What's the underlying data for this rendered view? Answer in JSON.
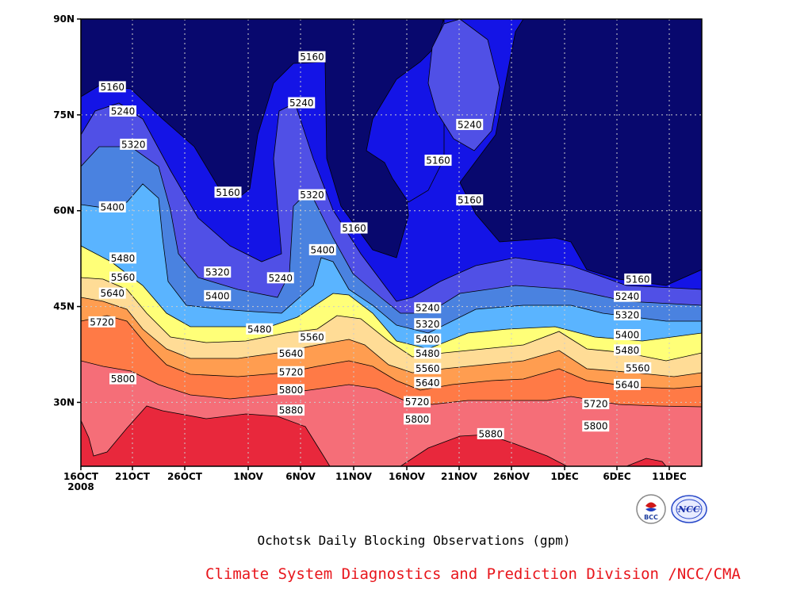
{
  "chart_data": {
    "type": "contour",
    "title": "Ochotsk Daily Blocking Observations (gpm)",
    "x_ticks": [
      "16OCT\n2008",
      "21OCT",
      "26OCT",
      "1NOV",
      "6NOV",
      "11NOV",
      "16NOV",
      "21NOV",
      "26NOV",
      "1DEC",
      "6DEC",
      "11DEC"
    ],
    "y_ticks": [
      "30N",
      "45N",
      "60N",
      "75N",
      "90N"
    ],
    "ylim": [
      20,
      90
    ],
    "units": "gpm",
    "contour_levels": [
      5160,
      5240,
      5320,
      5400,
      5480,
      5560,
      5640,
      5720,
      5800,
      5880
    ],
    "contour_labels": [
      {
        "text": "5160",
        "date": "19OCT",
        "lat": 79.4
      },
      {
        "text": "5240",
        "date": "20OCT",
        "lat": 75.6
      },
      {
        "text": "5320",
        "date": "21OCT",
        "lat": 70.4
      },
      {
        "text": "5400",
        "date": "19OCT",
        "lat": 60.6
      },
      {
        "text": "5480",
        "date": "20OCT",
        "lat": 52.6
      },
      {
        "text": "5560",
        "date": "20OCT",
        "lat": 49.6
      },
      {
        "text": "5640",
        "date": "19OCT",
        "lat": 47.1
      },
      {
        "text": "5720",
        "date": "18OCT",
        "lat": 42.6
      },
      {
        "text": "5800",
        "date": "20OCT",
        "lat": 33.7
      },
      {
        "text": "5160",
        "date": "30OCT",
        "lat": 62.9
      },
      {
        "text": "5320",
        "date": "29OCT",
        "lat": 50.4
      },
      {
        "text": "5400",
        "date": "29OCT",
        "lat": 46.7
      },
      {
        "text": "5480",
        "date": "2NOV",
        "lat": 41.5
      },
      {
        "text": "5640",
        "date": "5NOV",
        "lat": 37.7
      },
      {
        "text": "5720",
        "date": "5NOV",
        "lat": 34.8
      },
      {
        "text": "5800",
        "date": "5NOV",
        "lat": 32.0
      },
      {
        "text": "5880",
        "date": "5NOV",
        "lat": 28.8
      },
      {
        "text": "5240",
        "date": "4NOV",
        "lat": 49.5
      },
      {
        "text": "5160",
        "date": "7NOV",
        "lat": 84.1
      },
      {
        "text": "5240",
        "date": "6NOV",
        "lat": 76.9
      },
      {
        "text": "5320",
        "date": "7NOV",
        "lat": 62.5
      },
      {
        "text": "5400",
        "date": "8NOV",
        "lat": 53.9
      },
      {
        "text": "5560",
        "date": "7NOV",
        "lat": 40.2
      },
      {
        "text": "5160",
        "date": "11NOV",
        "lat": 57.3
      },
      {
        "text": "5240",
        "date": "18NOV",
        "lat": 44.8
      },
      {
        "text": "5320",
        "date": "18NOV",
        "lat": 42.3
      },
      {
        "text": "5400",
        "date": "18NOV",
        "lat": 39.9
      },
      {
        "text": "5480",
        "date": "18NOV",
        "lat": 37.7
      },
      {
        "text": "5560",
        "date": "18NOV",
        "lat": 35.3
      },
      {
        "text": "5640",
        "date": "18NOV",
        "lat": 33.1
      },
      {
        "text": "5720",
        "date": "17NOV",
        "lat": 30.1
      },
      {
        "text": "5800",
        "date": "17NOV",
        "lat": 27.4
      },
      {
        "text": "5160",
        "date": "19NOV",
        "lat": 67.9
      },
      {
        "text": "5240",
        "date": "22NOV",
        "lat": 73.5
      },
      {
        "text": "5160",
        "date": "22NOV",
        "lat": 61.7
      },
      {
        "text": "5880",
        "date": "24NOV",
        "lat": 25.1
      },
      {
        "text": "5720",
        "date": "4DEC",
        "lat": 29.8
      },
      {
        "text": "5800",
        "date": "4DEC",
        "lat": 26.3
      },
      {
        "text": "5160",
        "date": "8DEC",
        "lat": 49.3
      },
      {
        "text": "5240",
        "date": "7DEC",
        "lat": 46.6
      },
      {
        "text": "5320",
        "date": "7DEC",
        "lat": 43.7
      },
      {
        "text": "5400",
        "date": "7DEC",
        "lat": 40.6
      },
      {
        "text": "5480",
        "date": "7DEC",
        "lat": 38.2
      },
      {
        "text": "5560",
        "date": "8DEC",
        "lat": 35.4
      },
      {
        "text": "5640",
        "date": "7DEC",
        "lat": 32.8
      }
    ],
    "fill_colors": [
      "#08086e",
      "#1414e6",
      "#5050e6",
      "#4a82e0",
      "#5ab4ff",
      "#ffff78",
      "#ffdc96",
      "#ff9d50",
      "#ff7a46",
      "#f56e78",
      "#e8283c"
    ]
  },
  "footer": {
    "caption": "Ochotsk Daily Blocking Observations (gpm)",
    "credit": "Climate System Diagnostics and Prediction Division /NCC/CMA"
  },
  "logos": {
    "left": {
      "icon": "bcc-logo",
      "text": "BCC"
    },
    "right": {
      "icon": "ncc-logo",
      "text": "NCC"
    }
  }
}
